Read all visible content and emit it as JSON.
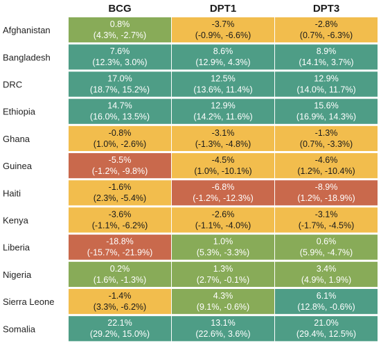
{
  "colors": {
    "red": "#c9694c",
    "yellow": "#f2bd4d",
    "green": "#88ab58",
    "teal": "#4e9d86",
    "text_dark": "#1a1a1a",
    "text_light": "#ffffff"
  },
  "chart_data": {
    "type": "heatmap",
    "columns": [
      "BCG",
      "DPT1",
      "DPT3"
    ],
    "rows": [
      {
        "label": "Afghanistan",
        "cells": [
          {
            "value": "0.8%",
            "ci": "(4.3%, -2.7%)",
            "color": "green"
          },
          {
            "value": "-3.7%",
            "ci": "(-0.9%, -6.6%)",
            "color": "yellow"
          },
          {
            "value": "-2.8%",
            "ci": "(0.7%, -6.3%)",
            "color": "yellow"
          }
        ]
      },
      {
        "label": "Bangladesh",
        "cells": [
          {
            "value": "7.6%",
            "ci": "(12.3%, 3.0%)",
            "color": "teal"
          },
          {
            "value": "8.6%",
            "ci": "(12.9%, 4.3%)",
            "color": "teal"
          },
          {
            "value": "8.9%",
            "ci": "(14.1%, 3.7%)",
            "color": "teal"
          }
        ]
      },
      {
        "label": "DRC",
        "cells": [
          {
            "value": "17.0%",
            "ci": "(18.7%, 15.2%)",
            "color": "teal"
          },
          {
            "value": "12.5%",
            "ci": "(13.6%, 11.4%)",
            "color": "teal"
          },
          {
            "value": "12.9%",
            "ci": "(14.0%, 11.7%)",
            "color": "teal"
          }
        ]
      },
      {
        "label": "Ethiopia",
        "cells": [
          {
            "value": "14.7%",
            "ci": "(16.0%, 13.5%)",
            "color": "teal"
          },
          {
            "value": "12.9%",
            "ci": "(14.2%, 11.6%)",
            "color": "teal"
          },
          {
            "value": "15.6%",
            "ci": "(16.9%, 14.3%)",
            "color": "teal"
          }
        ]
      },
      {
        "label": "Ghana",
        "cells": [
          {
            "value": "-0.8%",
            "ci": "(1.0%, -2.6%)",
            "color": "yellow"
          },
          {
            "value": "-3.1%",
            "ci": "(-1.3%, -4.8%)",
            "color": "yellow"
          },
          {
            "value": "-1.3%",
            "ci": "(0.7%, -3.3%)",
            "color": "yellow"
          }
        ]
      },
      {
        "label": "Guinea",
        "cells": [
          {
            "value": "-5.5%",
            "ci": "(-1.2%, -9.8%)",
            "color": "red"
          },
          {
            "value": "-4.5%",
            "ci": "(1.0%, -10.1%)",
            "color": "yellow"
          },
          {
            "value": "-4.6%",
            "ci": "(1.2%, -10.4%)",
            "color": "yellow"
          }
        ]
      },
      {
        "label": "Haiti",
        "cells": [
          {
            "value": "-1.6%",
            "ci": "(2.3%, -5.4%)",
            "color": "yellow"
          },
          {
            "value": "-6.8%",
            "ci": "(-1.2%, -12.3%)",
            "color": "red"
          },
          {
            "value": "-8.9%",
            "ci": "(1.2%, -18.9%)",
            "color": "red"
          }
        ]
      },
      {
        "label": "Kenya",
        "cells": [
          {
            "value": "-3.6%",
            "ci": "(-1.1%, -6.2%)",
            "color": "yellow"
          },
          {
            "value": "-2.6%",
            "ci": "(-1.1%, -4.0%)",
            "color": "yellow"
          },
          {
            "value": "-3.1%",
            "ci": "(-1.7%, -4.5%)",
            "color": "yellow"
          }
        ]
      },
      {
        "label": "Liberia",
        "cells": [
          {
            "value": "-18.8%",
            "ci": "(-15.7%, -21.9%)",
            "color": "red"
          },
          {
            "value": "1.0%",
            "ci": "(5.3%, -3.3%)",
            "color": "green"
          },
          {
            "value": "0.6%",
            "ci": "(5.9%, -4.7%)",
            "color": "green"
          }
        ]
      },
      {
        "label": "Nigeria",
        "cells": [
          {
            "value": "0.2%",
            "ci": "(1.6%, -1.3%)",
            "color": "green"
          },
          {
            "value": "1.3%",
            "ci": "(2.7%, -0.1%)",
            "color": "green"
          },
          {
            "value": "3.4%",
            "ci": "(4.9%, 1.9%)",
            "color": "green"
          }
        ]
      },
      {
        "label": "Sierra Leone",
        "cells": [
          {
            "value": "-1.4%",
            "ci": "(3.3%, -6.2%)",
            "color": "yellow"
          },
          {
            "value": "4.3%",
            "ci": "(9.1%, -0.6%)",
            "color": "green"
          },
          {
            "value": "6.1%",
            "ci": "(12.8%, -0.6%)",
            "color": "teal"
          }
        ]
      },
      {
        "label": "Somalia",
        "cells": [
          {
            "value": "22.1%",
            "ci": "(29.2%, 15.0%)",
            "color": "teal"
          },
          {
            "value": "13.1%",
            "ci": "(22.6%, 3.6%)",
            "color": "teal"
          },
          {
            "value": "21.0%",
            "ci": "(29.4%, 12.5%)",
            "color": "teal"
          }
        ]
      }
    ]
  }
}
